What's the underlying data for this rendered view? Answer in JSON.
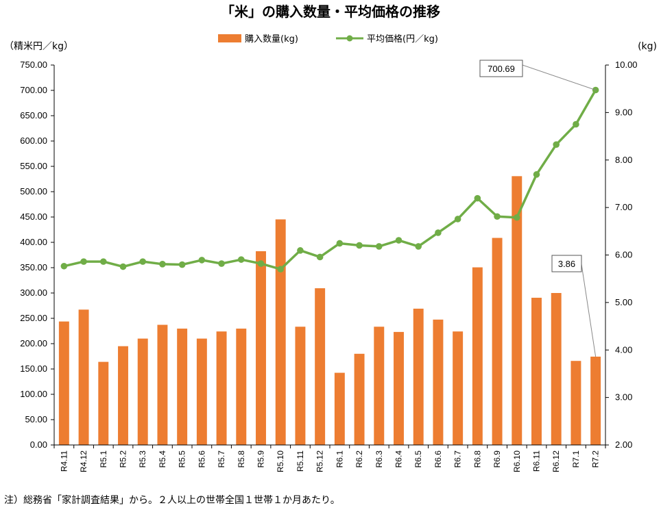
{
  "chart_data": {
    "type": "bar+line",
    "title": "「米」の購入数量・平均価格の推移",
    "left_axis_unit": "（精米円／kg）",
    "right_axis_unit": "(kg)",
    "left_ylim": [
      0,
      750
    ],
    "left_ticks": [
      "0.00",
      "50.00",
      "100.00",
      "150.00",
      "200.00",
      "250.00",
      "300.00",
      "350.00",
      "400.00",
      "450.00",
      "500.00",
      "550.00",
      "600.00",
      "650.00",
      "700.00",
      "750.00"
    ],
    "right_ylim": [
      2,
      10
    ],
    "right_ticks": [
      "2.00",
      "3.00",
      "4.00",
      "5.00",
      "6.00",
      "7.00",
      "8.00",
      "9.00",
      "10.00"
    ],
    "categories": [
      "R4.11",
      "R4.12",
      "R5.1",
      "R5.2",
      "R5.3",
      "R5.4",
      "R5.5",
      "R5.6",
      "R5.7",
      "R5.8",
      "R5.9",
      "R5.10",
      "R5.11",
      "R5.12",
      "R6.1",
      "R6.2",
      "R6.3",
      "R6.4",
      "R6.5",
      "R6.6",
      "R6.7",
      "R6.8",
      "R6.9",
      "R6.10",
      "R6.11",
      "R6.12",
      "R7.1",
      "R7.2"
    ],
    "series": [
      {
        "name": "購入数量(kg)",
        "type": "bar",
        "axis": "right",
        "color": "#ED7D31",
        "values": [
          4.6,
          4.85,
          3.75,
          4.08,
          4.24,
          4.53,
          4.45,
          4.24,
          4.39,
          4.45,
          6.08,
          6.75,
          4.49,
          5.3,
          3.52,
          3.92,
          4.49,
          4.38,
          4.87,
          4.64,
          4.39,
          5.74,
          6.36,
          7.66,
          5.1,
          5.2,
          3.77,
          3.86
        ]
      },
      {
        "name": "平均価格(円／kg)",
        "type": "line",
        "axis": "left",
        "color": "#70AD47",
        "values": [
          353,
          362,
          362,
          352,
          362,
          357,
          356,
          365,
          358,
          366,
          358,
          347,
          384,
          371,
          398,
          394,
          392,
          404,
          392,
          419,
          446,
          487,
          451,
          449,
          534,
          593,
          633,
          700.69
        ]
      }
    ],
    "annotations": [
      {
        "text": "700.69",
        "series": "平均価格(円／kg)",
        "category": "R7.2"
      },
      {
        "text": "3.86",
        "series": "購入数量(kg)",
        "category": "R7.2"
      }
    ],
    "legend_position": "top",
    "grid": false
  },
  "footnote": "注）総務省「家計調査結果」から。２人以上の世帯全国１世帯１か月あたり。"
}
